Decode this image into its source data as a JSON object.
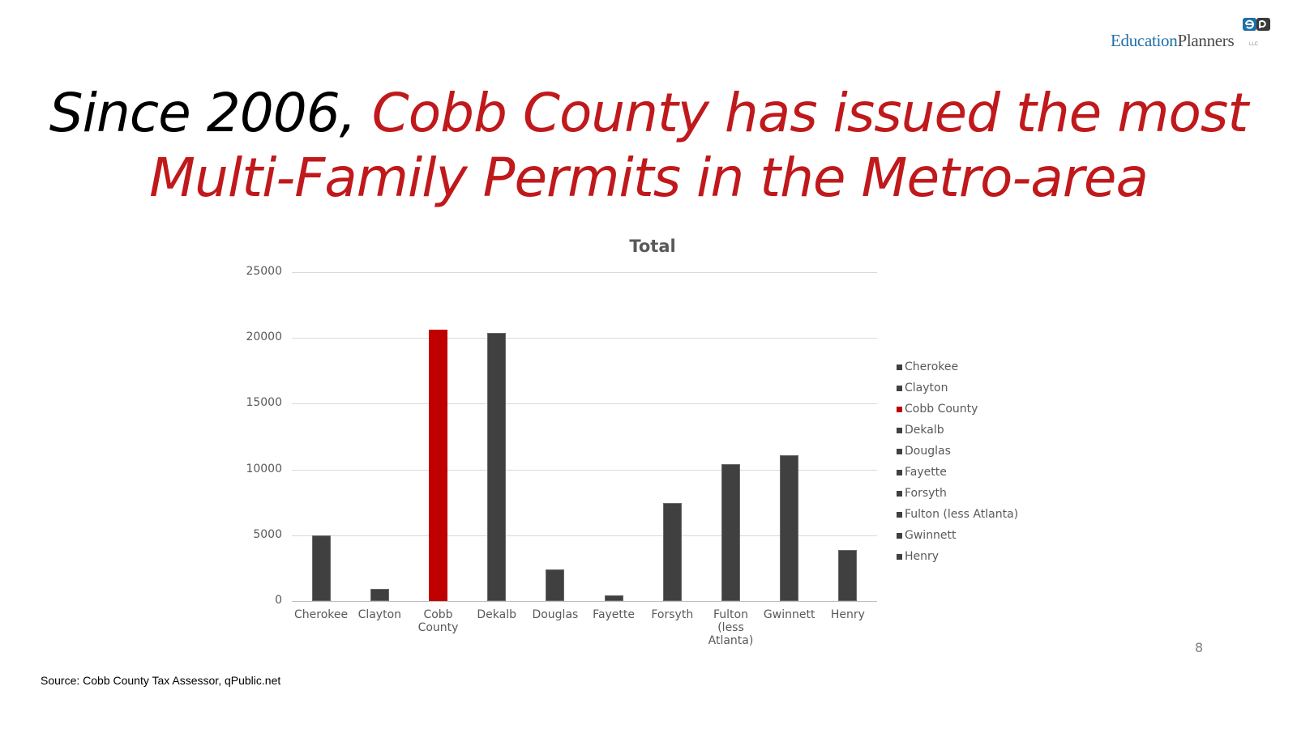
{
  "logo": {
    "part1": "Education",
    "part2": "Planners",
    "suffix": "LLC",
    "mark": "ep"
  },
  "slide": {
    "title_black": "Since 2006, ",
    "title_red": "Cobb County has issued the most Multi-Family Permits in the Metro-area",
    "page_number": "8",
    "source": "Source: Cobb County Tax Assessor, qPublic.net"
  },
  "colors": {
    "accent_red": "#c00000",
    "bar_dark": "#404040",
    "title_red": "#c0191c"
  },
  "chart_data": {
    "type": "bar",
    "title": "Total",
    "xlabel": "",
    "ylabel": "",
    "ylim": [
      0,
      25000
    ],
    "yticks": [
      "0",
      "5000",
      "10000",
      "15000",
      "20000",
      "25000"
    ],
    "grid": true,
    "legend_position": "right",
    "categories": [
      "Cherokee",
      "Clayton",
      "Cobb County",
      "Dekalb",
      "Douglas",
      "Fayette",
      "Forsyth",
      "Fulton (less Atlanta)",
      "Gwinnett",
      "Henry"
    ],
    "x_tick_labels": [
      "Cherokee",
      "Clayton",
      "Cobb\nCounty",
      "Dekalb",
      "Douglas",
      "Fayette",
      "Forsyth",
      "Fulton\n(less\nAtlanta)",
      "Gwinnett",
      "Henry"
    ],
    "values": [
      5000,
      900,
      20600,
      20400,
      2400,
      450,
      7450,
      10400,
      11100,
      3900
    ],
    "bar_colors": [
      "#404040",
      "#404040",
      "#c00000",
      "#404040",
      "#404040",
      "#404040",
      "#404040",
      "#404040",
      "#404040",
      "#404040"
    ],
    "legend": [
      "Cherokee",
      "Clayton",
      "Cobb County",
      "Dekalb",
      "Douglas",
      "Fayette",
      "Forsyth",
      "Fulton (less Atlanta)",
      "Gwinnett",
      "Henry"
    ]
  }
}
